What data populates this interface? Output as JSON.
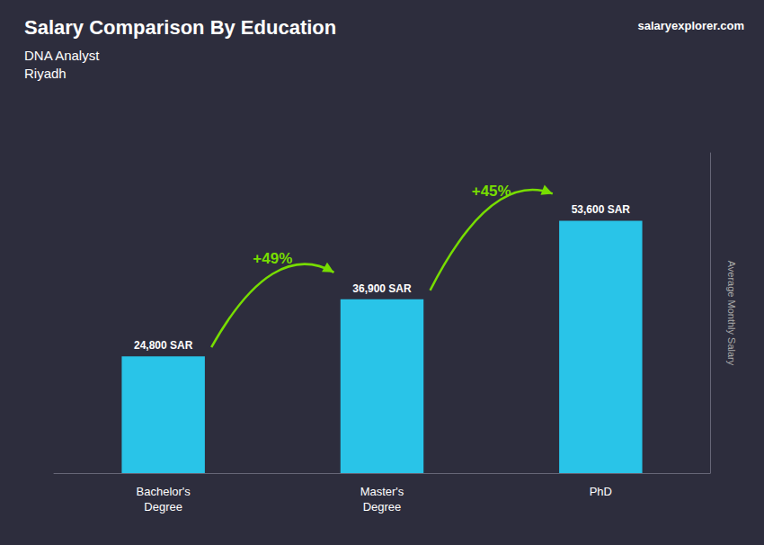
{
  "chart_data": {
    "type": "bar",
    "title": "Salary Comparison By Education",
    "subtitle": [
      "DNA Analyst",
      "Riyadh"
    ],
    "ylabel": "Average Monthly Salary",
    "categories": [
      "Bachelor's\nDegree",
      "Master's\nDegree",
      "PhD"
    ],
    "values": [
      24800,
      36900,
      53600
    ],
    "value_labels": [
      "24,800 SAR",
      "36,900 SAR",
      "53,600 SAR"
    ],
    "color": "#29C4E8",
    "ylim": [
      0,
      68000
    ],
    "data_labels": true,
    "tick_labels": "x",
    "grid": false,
    "annotations": [
      {
        "text": "+49%",
        "color": "#77DD00"
      },
      {
        "text": "+45%",
        "color": "#77DD00"
      },
      {
        "text": "salaryexplorer.com"
      }
    ]
  }
}
